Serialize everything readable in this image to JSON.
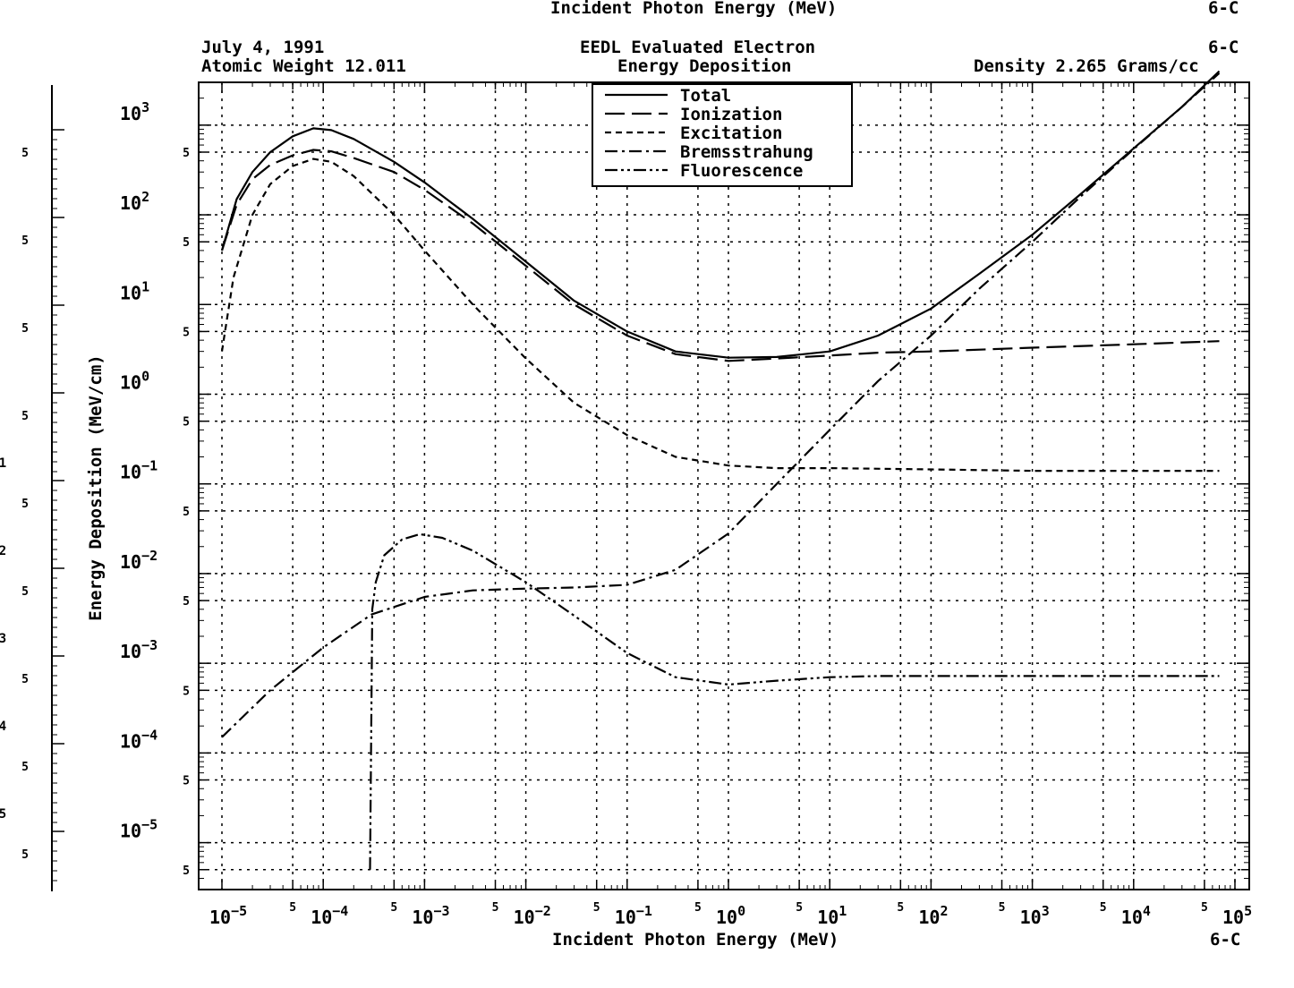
{
  "header": {
    "top_partial_label": "Incident Photon Energy (MeV)",
    "top_partial_code": "6-C",
    "date": "July 4, 1991",
    "atomic_weight": "Atomic Weight 12.011",
    "title_line1": "EEDL Evaluated Electron",
    "title_line2": "Energy Deposition",
    "element_code": "6-C",
    "density": "Density 2.265 Grams/cc"
  },
  "footer": {
    "xlabel": "Incident Photon Energy (MeV)",
    "element_code": "6-C"
  },
  "left_strip": {
    "minor_label": "5",
    "partial_exponents": [
      "1",
      "2",
      "3",
      "4",
      "5"
    ]
  },
  "chart_data": {
    "type": "line",
    "title": "EEDL Evaluated Electron Energy Deposition",
    "xlabel": "Incident Photon Energy (MeV)",
    "ylabel": "Energy Deposition (MeV/cm)",
    "x_scale": "log",
    "y_scale": "log",
    "xlim": [
      5e-06,
      100000.0
    ],
    "ylim": [
      3e-06,
      3000
    ],
    "grid": true,
    "legend_position": "top-center",
    "x_tick_exponents": [
      -5,
      -4,
      -3,
      -2,
      -1,
      0,
      1,
      2,
      3,
      4,
      5
    ],
    "y_tick_exponents": [
      -5,
      -4,
      -3,
      -2,
      -1,
      0,
      1,
      2,
      3
    ],
    "minor_tick_label": "5",
    "series": [
      {
        "name": "Total",
        "style": "solid",
        "points": [
          [
            1e-05,
            40
          ],
          [
            1.4e-05,
            150
          ],
          [
            2e-05,
            300
          ],
          [
            3e-05,
            500
          ],
          [
            5e-05,
            750
          ],
          [
            8e-05,
            920
          ],
          [
            0.00012,
            880
          ],
          [
            0.0002,
            700
          ],
          [
            0.0005,
            390
          ],
          [
            0.001,
            230
          ],
          [
            0.003,
            90
          ],
          [
            0.01,
            30
          ],
          [
            0.03,
            11
          ],
          [
            0.1,
            5
          ],
          [
            0.3,
            3
          ],
          [
            1,
            2.55
          ],
          [
            3,
            2.6
          ],
          [
            10,
            3
          ],
          [
            30,
            4.5
          ],
          [
            100,
            9
          ],
          [
            300,
            22
          ],
          [
            1000,
            60
          ],
          [
            3000,
            170
          ],
          [
            10000,
            550
          ],
          [
            30000,
            1600
          ],
          [
            70000,
            4000
          ]
        ]
      },
      {
        "name": "Ionization",
        "style": "long-dash",
        "points": [
          [
            1e-05,
            40
          ],
          [
            1.4e-05,
            130
          ],
          [
            2e-05,
            250
          ],
          [
            3e-05,
            360
          ],
          [
            5e-05,
            460
          ],
          [
            8e-05,
            530
          ],
          [
            0.00012,
            510
          ],
          [
            0.0002,
            430
          ],
          [
            0.0005,
            300
          ],
          [
            0.001,
            190
          ],
          [
            0.003,
            80
          ],
          [
            0.01,
            27
          ],
          [
            0.03,
            10
          ],
          [
            0.1,
            4.5
          ],
          [
            0.3,
            2.8
          ],
          [
            1,
            2.35
          ],
          [
            3,
            2.5
          ],
          [
            10,
            2.7
          ],
          [
            30,
            2.9
          ],
          [
            100,
            3.0
          ],
          [
            1000,
            3.3
          ],
          [
            10000,
            3.6
          ],
          [
            70000,
            3.9
          ]
        ]
      },
      {
        "name": "Excitation",
        "style": "short-dash",
        "points": [
          [
            1e-05,
            3
          ],
          [
            1.3e-05,
            20
          ],
          [
            2e-05,
            100
          ],
          [
            3e-05,
            220
          ],
          [
            5e-05,
            350
          ],
          [
            8e-05,
            420
          ],
          [
            0.00012,
            390
          ],
          [
            0.0002,
            270
          ],
          [
            0.0005,
            100
          ],
          [
            0.001,
            40
          ],
          [
            0.003,
            10
          ],
          [
            0.01,
            2.5
          ],
          [
            0.03,
            0.8
          ],
          [
            0.1,
            0.35
          ],
          [
            0.3,
            0.2
          ],
          [
            1,
            0.16
          ],
          [
            3,
            0.15
          ],
          [
            10,
            0.15
          ],
          [
            100,
            0.145
          ],
          [
            1000,
            0.14
          ],
          [
            10000,
            0.14
          ],
          [
            70000,
            0.14
          ]
        ]
      },
      {
        "name": "Bremsstrahung",
        "style": "dash-dot",
        "points": [
          [
            1e-05,
            0.00015
          ],
          [
            3e-05,
            0.0005
          ],
          [
            0.0001,
            0.0015
          ],
          [
            0.0003,
            0.0035
          ],
          [
            0.001,
            0.0055
          ],
          [
            0.003,
            0.0065
          ],
          [
            0.01,
            0.0068
          ],
          [
            0.03,
            0.007
          ],
          [
            0.1,
            0.0075
          ],
          [
            0.3,
            0.011
          ],
          [
            1,
            0.028
          ],
          [
            3,
            0.1
          ],
          [
            10,
            0.4
          ],
          [
            30,
            1.4
          ],
          [
            100,
            4.5
          ],
          [
            300,
            15
          ],
          [
            1000,
            50
          ],
          [
            3000,
            160
          ],
          [
            10000,
            540
          ],
          [
            30000,
            1600
          ],
          [
            70000,
            3800
          ]
        ]
      },
      {
        "name": "Fluorescence",
        "style": "dash-dot-dot",
        "points": [
          [
            0.00029,
            5e-06
          ],
          [
            0.000305,
            0.004
          ],
          [
            0.00033,
            0.008
          ],
          [
            0.0004,
            0.016
          ],
          [
            0.0006,
            0.024
          ],
          [
            0.0009,
            0.0275
          ],
          [
            0.0015,
            0.025
          ],
          [
            0.003,
            0.018
          ],
          [
            0.01,
            0.008
          ],
          [
            0.03,
            0.0034
          ],
          [
            0.1,
            0.0013
          ],
          [
            0.3,
            0.0007
          ],
          [
            1,
            0.00058
          ],
          [
            3,
            0.00064
          ],
          [
            10,
            0.0007
          ],
          [
            30,
            0.00072
          ],
          [
            1000,
            0.00072
          ],
          [
            70000,
            0.00072
          ]
        ]
      }
    ]
  }
}
